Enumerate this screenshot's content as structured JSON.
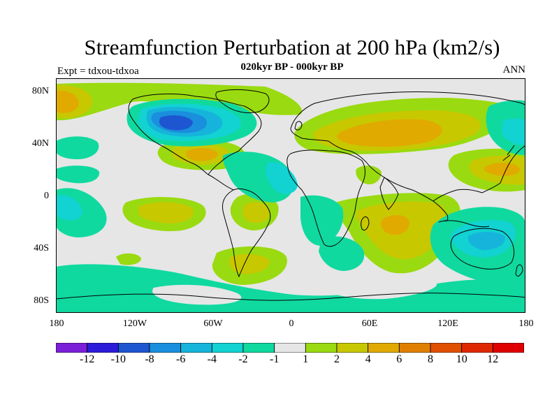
{
  "title": "Streamfunction Perturbation at 200 hPa (km2/s)",
  "subtitle": "020kyr BP - 000kyr BP",
  "left_label": "Expt = tdxou-tdxoa",
  "right_label": "ANN",
  "lat_ticks": [
    "80N",
    "40N",
    "0",
    "40S",
    "80S"
  ],
  "lon_ticks": [
    "180",
    "120W",
    "60W",
    "0",
    "60E",
    "120E",
    "180"
  ],
  "colorbar": {
    "labels": [
      "-12",
      "-10",
      "-8",
      "-6",
      "-4",
      "-2",
      "-1",
      "1",
      "2",
      "4",
      "6",
      "8",
      "10",
      "12"
    ],
    "colors": [
      "#7B1FD8",
      "#2C1BD8",
      "#1E55D0",
      "#1A8FDD",
      "#16B4DB",
      "#12D2D2",
      "#10D9A0",
      "#E6E6E6",
      "#9ADA10",
      "#C8C800",
      "#E0AA00",
      "#E08000",
      "#E05000",
      "#E02800",
      "#E00000"
    ]
  },
  "palette": {
    "neutral": "#E6E6E6",
    "coast": "#000000"
  }
}
